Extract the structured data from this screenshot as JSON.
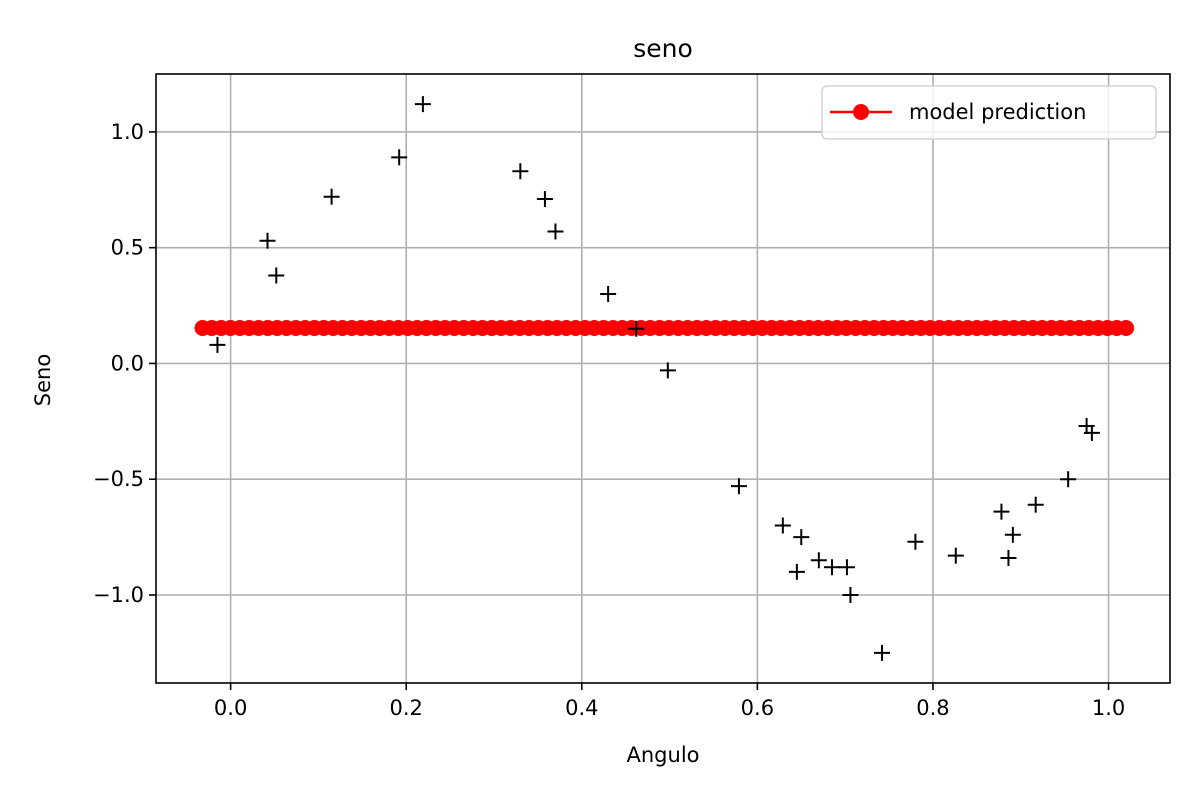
{
  "chart_data": {
    "type": "scatter",
    "title": "seno",
    "xlabel": "Angulo",
    "ylabel": "Seno",
    "xlim": [
      -0.085,
      1.07
    ],
    "ylim": [
      -1.38,
      1.25
    ],
    "xticks": [
      0.0,
      0.2,
      0.4,
      0.6,
      0.8,
      1.0
    ],
    "xtick_labels": [
      "0.0",
      "0.2",
      "0.4",
      "0.6",
      "0.8",
      "1.0"
    ],
    "yticks": [
      -1.0,
      -0.5,
      0.0,
      0.5,
      1.0
    ],
    "ytick_labels": [
      "−1.0",
      "−0.5",
      "0.0",
      "0.5",
      "1.0"
    ],
    "grid": true,
    "legend_position": "top-right",
    "colors": {
      "prediction": "#ff0000",
      "observations": "#000000",
      "grid": "#b0b0b0",
      "axes": "#000000"
    },
    "prediction": {
      "name": "model prediction",
      "y": 0.153,
      "x_start": -0.032,
      "x_end": 1.02,
      "num_points": 100
    },
    "observations": {
      "x": [
        -0.015,
        0.042,
        0.052,
        0.115,
        0.192,
        0.219,
        0.33,
        0.358,
        0.37,
        0.43,
        0.462,
        0.498,
        0.579,
        0.629,
        0.645,
        0.65,
        0.67,
        0.685,
        0.702,
        0.706,
        0.742,
        0.78,
        0.826,
        0.878,
        0.886,
        0.891,
        0.917,
        0.954,
        0.975,
        0.981
      ],
      "y": [
        0.08,
        0.53,
        0.38,
        0.72,
        0.89,
        1.12,
        0.83,
        0.71,
        0.57,
        0.3,
        0.15,
        -0.03,
        -0.53,
        -0.7,
        -0.9,
        -0.75,
        -0.85,
        -0.88,
        -0.88,
        -1.0,
        -1.25,
        -0.77,
        -0.83,
        -0.64,
        -0.84,
        -0.74,
        -0.61,
        -0.5,
        -0.27,
        -0.3
      ]
    }
  }
}
